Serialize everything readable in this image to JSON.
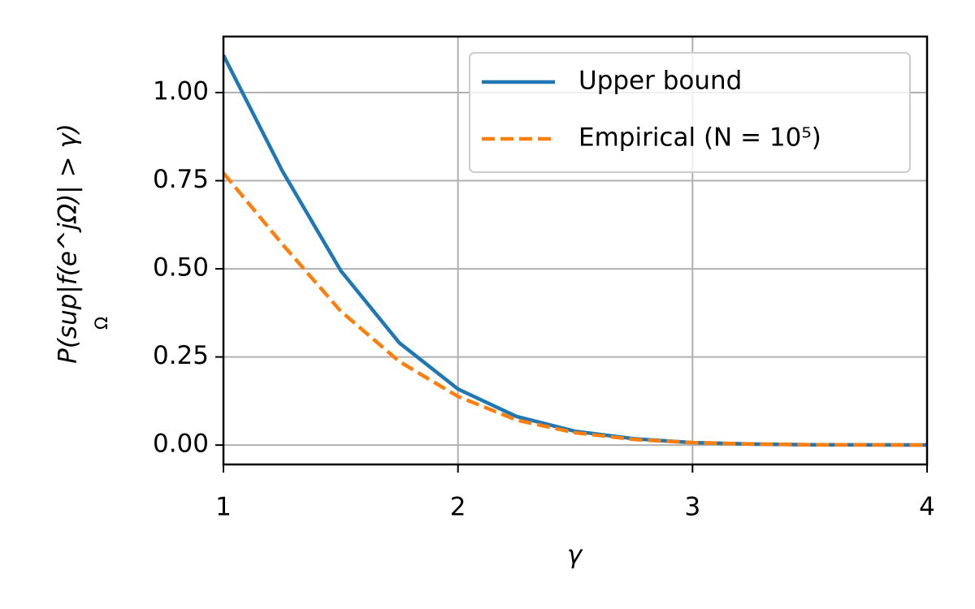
{
  "chart_data": {
    "type": "line",
    "xlabel": "γ",
    "ylabel": "P(sup|f(e^jΩ)| > γ)",
    "ylabel_sub": "Ω",
    "x": [
      1,
      1.25,
      1.5,
      1.75,
      2,
      2.25,
      2.5,
      2.75,
      3,
      3.25,
      3.5,
      3.75,
      4
    ],
    "series": [
      {
        "name": "Upper bound",
        "color": "#1f77b4",
        "style": "solid",
        "values": [
          1.106,
          0.779,
          0.495,
          0.29,
          0.159,
          0.081,
          0.039,
          0.018,
          0.007,
          0.003,
          0.001,
          0.0005,
          0.0002
        ]
      },
      {
        "name": "Empirical (N = 10⁵)",
        "color": "#ff7f0e",
        "style": "dashed",
        "values": [
          0.772,
          0.571,
          0.38,
          0.237,
          0.138,
          0.071,
          0.035,
          0.016,
          0.007,
          0.003,
          0.001,
          0.0005,
          0.0002
        ]
      }
    ],
    "xlim": [
      1,
      4
    ],
    "xticks": [
      1,
      2,
      3,
      4
    ],
    "ylim": [
      -0.055,
      1.159
    ],
    "yticks": [
      {
        "value": 0,
        "label": "0.00"
      },
      {
        "value": 0.25,
        "label": "0.25"
      },
      {
        "value": 0.5,
        "label": "0.50"
      },
      {
        "value": 0.75,
        "label": "0.75"
      },
      {
        "value": 1,
        "label": "1.00"
      }
    ],
    "grid": true,
    "legend": "upper right"
  }
}
